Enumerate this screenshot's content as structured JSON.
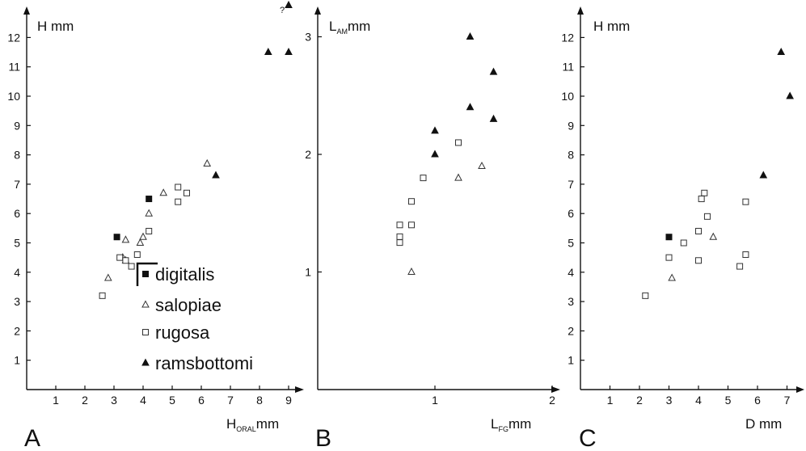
{
  "legend": {
    "entries": [
      {
        "label": "digitalis",
        "marker": "filled-square"
      },
      {
        "label": "salopiae",
        "marker": "open-triangle"
      },
      {
        "label": "rugosa",
        "marker": "open-square"
      },
      {
        "label": "ramsbottomi",
        "marker": "filled-triangle"
      }
    ]
  },
  "panels": {
    "A": {
      "letter": "A",
      "ylabel": "H mm",
      "xlabel_main": "H",
      "xlabel_sub": "ORAL",
      "xlabel_unit": "mm",
      "annotation": "?"
    },
    "B": {
      "letter": "B",
      "ylabel_main": "L",
      "ylabel_sub": "AM",
      "ylabel_unit": "mm",
      "xlabel_main": "L",
      "xlabel_sub": "FG",
      "xlabel_unit": "mm"
    },
    "C": {
      "letter": "C",
      "ylabel": "H mm",
      "xlabel": "D mm"
    }
  },
  "chart_data": [
    {
      "type": "scatter",
      "panel": "A",
      "xlabel": "H ORAL mm",
      "ylabel": "H mm",
      "xlim": [
        0,
        9.6
      ],
      "ylim": [
        0,
        12.6
      ],
      "xticks": [
        1,
        2,
        3,
        4,
        5,
        6,
        7,
        8,
        9
      ],
      "yticks": [
        1,
        2,
        3,
        4,
        5,
        6,
        7,
        8,
        9,
        10,
        11,
        12
      ],
      "series": [
        {
          "name": "digitalis",
          "marker": "filled-square",
          "points": [
            [
              3.1,
              5.2
            ],
            [
              4.2,
              6.5
            ]
          ]
        },
        {
          "name": "salopiae",
          "marker": "open-triangle",
          "points": [
            [
              2.8,
              3.8
            ],
            [
              3.3,
              4.5
            ],
            [
              3.4,
              4.4
            ],
            [
              3.4,
              5.1
            ],
            [
              3.9,
              5.0
            ],
            [
              4.0,
              5.2
            ],
            [
              4.2,
              6.0
            ],
            [
              4.7,
              6.7
            ],
            [
              6.2,
              7.7
            ]
          ]
        },
        {
          "name": "rugosa",
          "marker": "open-square",
          "points": [
            [
              2.6,
              3.2
            ],
            [
              3.2,
              4.5
            ],
            [
              3.4,
              4.4
            ],
            [
              3.6,
              4.2
            ],
            [
              3.8,
              4.6
            ],
            [
              4.2,
              5.4
            ],
            [
              5.2,
              6.9
            ],
            [
              5.5,
              6.7
            ],
            [
              5.2,
              6.4
            ]
          ]
        },
        {
          "name": "ramsbottomi",
          "marker": "filled-triangle",
          "points": [
            [
              6.5,
              7.3
            ],
            [
              8.3,
              11.5
            ],
            [
              9.0,
              11.5
            ],
            [
              9.0,
              13.1
            ]
          ]
        }
      ]
    },
    {
      "type": "scatter",
      "panel": "B",
      "xlabel": "L FG mm",
      "ylabel": "L AM mm",
      "xlim": [
        0,
        2.1
      ],
      "ylim": [
        0,
        3.2
      ],
      "xticks": [
        1,
        2
      ],
      "yticks": [
        1,
        2,
        3
      ],
      "series": [
        {
          "name": "salopiae",
          "marker": "open-triangle",
          "points": [
            [
              0.8,
              1.0
            ],
            [
              1.2,
              1.8
            ],
            [
              1.4,
              1.9
            ]
          ]
        },
        {
          "name": "rugosa",
          "marker": "open-square",
          "points": [
            [
              0.7,
              1.25
            ],
            [
              0.7,
              1.3
            ],
            [
              0.7,
              1.4
            ],
            [
              0.8,
              1.4
            ],
            [
              0.8,
              1.6
            ],
            [
              0.9,
              1.8
            ],
            [
              1.2,
              2.1
            ]
          ]
        },
        {
          "name": "ramsbottomi",
          "marker": "filled-triangle",
          "points": [
            [
              1.0,
              2.0
            ],
            [
              1.0,
              2.2
            ],
            [
              1.3,
              2.4
            ],
            [
              1.3,
              3.0
            ],
            [
              1.5,
              2.3
            ],
            [
              1.5,
              2.7
            ]
          ]
        }
      ]
    },
    {
      "type": "scatter",
      "panel": "C",
      "xlabel": "D mm",
      "ylabel": "H mm",
      "xlim": [
        0,
        7.6
      ],
      "ylim": [
        0,
        12.6
      ],
      "xticks": [
        1,
        2,
        3,
        4,
        5,
        6,
        7
      ],
      "yticks": [
        1,
        2,
        3,
        4,
        5,
        6,
        7,
        8,
        9,
        10,
        11,
        12
      ],
      "series": [
        {
          "name": "digitalis",
          "marker": "filled-square",
          "points": [
            [
              3.0,
              5.2
            ]
          ]
        },
        {
          "name": "salopiae",
          "marker": "open-triangle",
          "points": [
            [
              3.1,
              3.8
            ],
            [
              4.5,
              5.2
            ]
          ]
        },
        {
          "name": "rugosa",
          "marker": "open-square",
          "points": [
            [
              2.2,
              3.2
            ],
            [
              3.0,
              4.5
            ],
            [
              3.5,
              5.0
            ],
            [
              4.0,
              4.4
            ],
            [
              4.0,
              5.4
            ],
            [
              4.1,
              6.5
            ],
            [
              4.2,
              6.7
            ],
            [
              4.3,
              5.9
            ],
            [
              5.4,
              4.2
            ],
            [
              5.6,
              4.6
            ],
            [
              5.6,
              6.4
            ]
          ]
        },
        {
          "name": "ramsbottomi",
          "marker": "filled-triangle",
          "points": [
            [
              6.2,
              7.3
            ],
            [
              6.8,
              11.5
            ],
            [
              7.1,
              10.0
            ]
          ]
        }
      ]
    }
  ]
}
